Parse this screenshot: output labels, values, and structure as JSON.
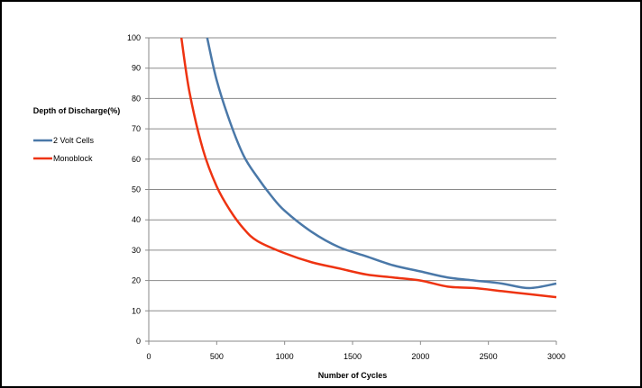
{
  "chart_data": {
    "type": "line",
    "title": "",
    "xlabel": "Number of Cycles",
    "ylabel": "Depth of Discharge(%)",
    "xlim": [
      0,
      3000
    ],
    "ylim": [
      0,
      100
    ],
    "xticks": [
      0,
      500,
      1000,
      1500,
      2000,
      2500,
      3000
    ],
    "yticks": [
      0,
      10,
      20,
      30,
      40,
      50,
      60,
      70,
      80,
      90,
      100
    ],
    "grid": "horizontal",
    "legend_position": "left",
    "series": [
      {
        "name": "2 Volt Cells",
        "color": "#4a78a8",
        "x": [
          430,
          500,
          600,
          700,
          800,
          900,
          1000,
          1200,
          1400,
          1600,
          1800,
          2000,
          2200,
          2400,
          2600,
          2800,
          3000
        ],
        "y": [
          100,
          86,
          72,
          61,
          54,
          48,
          43,
          36,
          31,
          28,
          25,
          23,
          21,
          20,
          19,
          17.5,
          19
        ]
      },
      {
        "name": "Monoblock",
        "color": "#ee3311",
        "x": [
          240,
          300,
          400,
          500,
          600,
          700,
          800,
          1000,
          1200,
          1400,
          1600,
          1800,
          2000,
          2200,
          2400,
          2600,
          2800,
          3000
        ],
        "y": [
          100,
          82,
          63,
          51,
          43,
          37,
          33,
          29,
          26,
          24,
          22,
          21,
          20,
          18,
          17.5,
          16.5,
          15.5,
          14.5
        ]
      }
    ]
  }
}
